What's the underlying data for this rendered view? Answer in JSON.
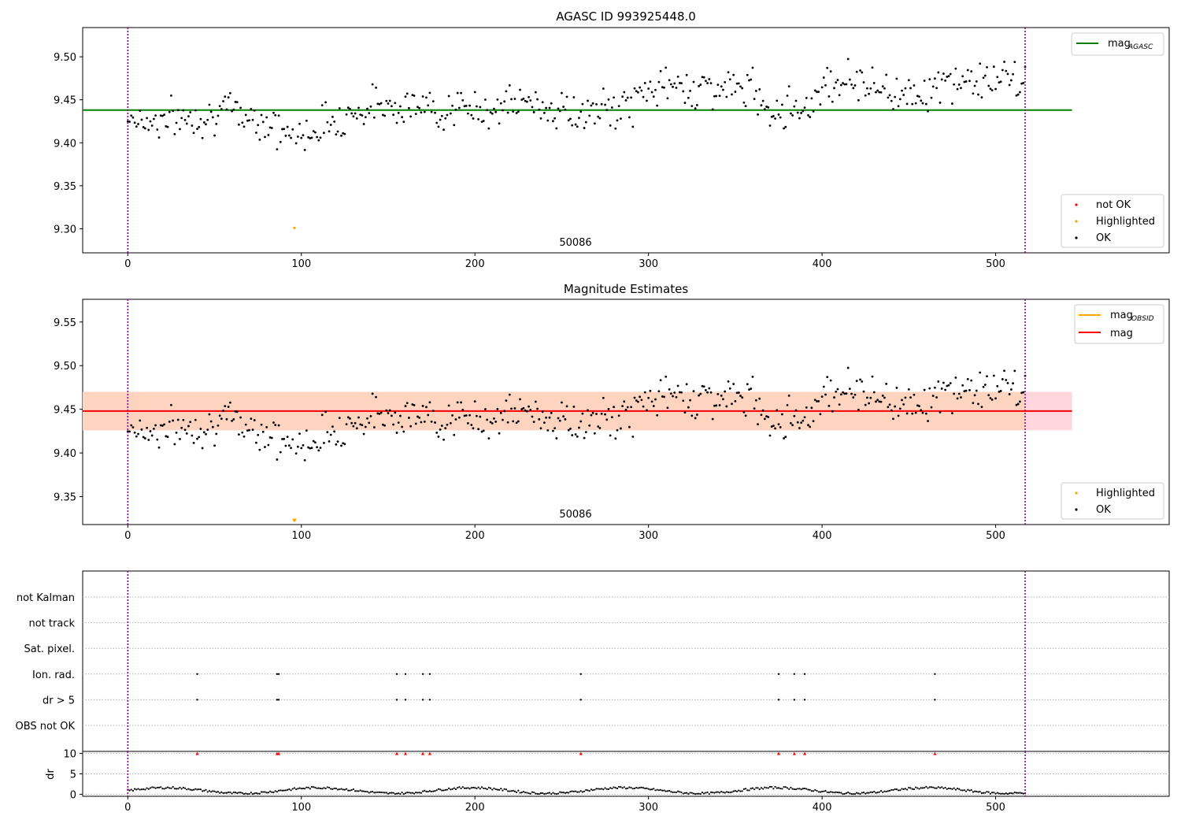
{
  "chart_data": [
    {
      "type": "scatter",
      "title": "AGASC ID 993925448.0",
      "xlim": [
        -26,
        600
      ],
      "ylim": [
        9.272,
        9.534
      ],
      "xticks": [
        0,
        100,
        200,
        300,
        400,
        500
      ],
      "yticks": [
        9.3,
        9.35,
        9.4,
        9.45,
        9.5
      ],
      "grid": false,
      "vlines": [
        0,
        517
      ],
      "annotation": {
        "x": 250,
        "y": 9.283,
        "text": "50086"
      },
      "hline": {
        "y": 9.438,
        "x": [
          -26,
          544
        ],
        "label": "mag",
        "sub": "AGASC",
        "color": "#008000"
      },
      "legend_lines_position": "top-right",
      "legend_points_position": "lower-right",
      "legend_points": [
        {
          "label": "not OK",
          "color": "#ff0000"
        },
        {
          "label": "Highlighted",
          "color": "#ffa500"
        },
        {
          "label": "OK",
          "color": "#000000"
        }
      ],
      "series": [
        {
          "name": "Highlighted",
          "x": [
            96
          ],
          "y": [
            9.301
          ],
          "color": "#ffa500"
        }
      ],
      "ok_series_anchors": {
        "x": [
          0,
          10,
          30,
          60,
          80,
          90,
          100,
          110,
          130,
          150,
          170,
          200,
          230,
          260,
          290,
          300,
          320,
          360,
          370,
          380,
          395,
          400,
          420,
          440,
          460,
          480,
          500,
          517
        ],
        "y": [
          9.432,
          9.425,
          9.428,
          9.437,
          9.425,
          9.41,
          9.408,
          9.42,
          9.435,
          9.447,
          9.44,
          9.438,
          9.447,
          9.432,
          9.443,
          9.465,
          9.465,
          9.462,
          9.44,
          9.44,
          9.445,
          9.47,
          9.474,
          9.458,
          9.46,
          9.472,
          9.474,
          9.47
        ]
      }
    },
    {
      "type": "scatter",
      "title": "Magnitude Estimates",
      "xlim": [
        -26,
        600
      ],
      "ylim": [
        9.318,
        9.576
      ],
      "xticks": [
        0,
        100,
        200,
        300,
        400,
        500
      ],
      "yticks": [
        9.35,
        9.4,
        9.45,
        9.5,
        9.55
      ],
      "grid": false,
      "vlines": [
        0,
        517
      ],
      "annotation": {
        "x": 250,
        "y": 9.329,
        "text": "50086"
      },
      "band_outer": {
        "y": [
          9.426,
          9.47
        ],
        "color": "#ffd6dc"
      },
      "band_inner": {
        "y": [
          9.426,
          9.47
        ],
        "x": [
          -26,
          517
        ],
        "color": "#fdd4c0"
      },
      "hline_mag": {
        "y": 9.448,
        "label": "mag",
        "color": "#ff0000"
      },
      "hline_obsid": {
        "label": "mag",
        "sub": "OBSID",
        "color": "#ffa500"
      },
      "legend_lines_position": "top-right",
      "legend_points_position": "lower-right",
      "legend_points": [
        {
          "label": "Highlighted",
          "color": "#ffa500"
        },
        {
          "label": "OK",
          "color": "#000000"
        }
      ],
      "highlighted_marker": {
        "x": 96,
        "y": 9.322,
        "shape": "triangle-down",
        "color": "#ffa500"
      }
    },
    {
      "type": "scatter",
      "title": "",
      "xlim": [
        -26,
        600
      ],
      "categories": [
        "not Kalman",
        "not track",
        "Sat. pixel.",
        "Ion. rad.",
        "dr > 5",
        "OBS not OK"
      ],
      "flag_x": [
        40,
        86,
        87,
        155,
        160,
        170,
        174,
        261,
        375,
        384,
        390,
        465
      ],
      "flags": {
        "Ion. rad.": true,
        "dr > 5": true
      },
      "vlines": [
        0,
        517
      ]
    },
    {
      "type": "scatter",
      "title": "",
      "ylabel": "dr",
      "xlim": [
        -26,
        600
      ],
      "ylim": [
        -0.5,
        10.5
      ],
      "yticks": [
        0,
        5,
        10
      ],
      "xticks": [
        0,
        100,
        200,
        300,
        400,
        500
      ],
      "clipped_x": [
        40,
        86,
        87,
        155,
        160,
        170,
        174,
        261,
        375,
        384,
        390,
        465
      ],
      "clipped_y": 10,
      "vlines": [
        0,
        517
      ]
    }
  ],
  "labels": {
    "legend_mag_agasc_main": "mag",
    "legend_mag_agasc_sub": "AGASC",
    "legend_not_ok": "not OK",
    "legend_highlighted": "Highlighted",
    "legend_ok": "OK",
    "legend_mag_obsid_main": "mag",
    "legend_mag_obsid_sub": "OBSID",
    "legend_mag": "mag",
    "legend2_highlighted": "Highlighted",
    "legend2_ok": "OK",
    "ylabel_dr": "dr"
  },
  "colors": {
    "green": "#008000",
    "red": "#ff0000",
    "orange": "#ffa500",
    "purple": "#800080",
    "black": "#000000"
  }
}
